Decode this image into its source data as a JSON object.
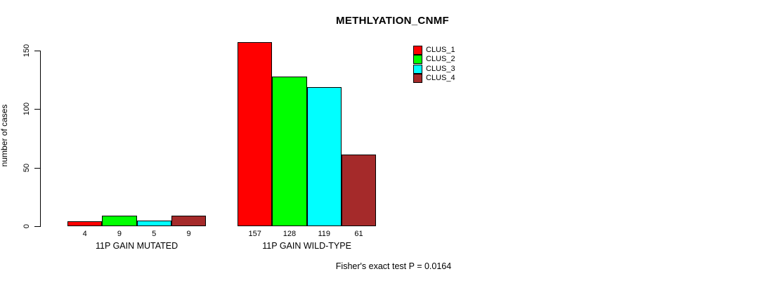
{
  "chart_data": {
    "type": "bar",
    "title": "METHLYATION_CNMF",
    "ylabel": "number of cases",
    "xlabel": "",
    "annotation": "Fisher's exact test P = 0.0164",
    "groups": [
      {
        "label": "11P GAIN MUTATED",
        "values": [
          4,
          9,
          5,
          9
        ]
      },
      {
        "label": "11P GAIN WILD-TYPE",
        "values": [
          157,
          128,
          119,
          61
        ]
      }
    ],
    "series": [
      {
        "name": "CLUS_1",
        "color": "#FF0000"
      },
      {
        "name": "CLUS_2",
        "color": "#00FF00"
      },
      {
        "name": "CLUS_3",
        "color": "#00FFFF"
      },
      {
        "name": "CLUS_4",
        "color": "#A52A2A"
      }
    ],
    "yticks": [
      0,
      50,
      100,
      150
    ],
    "ylim": [
      0,
      150
    ],
    "grid": false,
    "legend_position": "top-right",
    "show_value_labels": true
  }
}
